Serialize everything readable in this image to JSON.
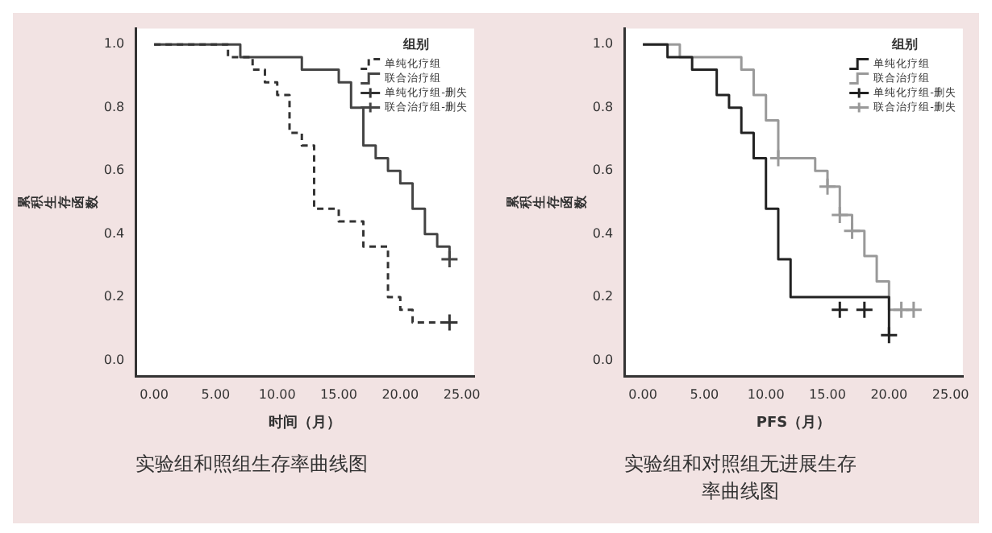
{
  "chart_data": [
    {
      "type": "step",
      "xlabel": "时间（月）",
      "ylabel": "累积生存函数",
      "legend_title": "组别",
      "legend": "top right",
      "grid": false,
      "xlim": [
        -1.5,
        26
      ],
      "ylim": [
        -0.05,
        1.05
      ],
      "xticks": [
        {
          "value": 0,
          "label": "0.00"
        },
        {
          "value": 5,
          "label": "5.00"
        },
        {
          "value": 10,
          "label": "10.00"
        },
        {
          "value": 15,
          "label": "15.00"
        },
        {
          "value": 20,
          "label": "20.00"
        },
        {
          "value": 25,
          "label": "25.00"
        }
      ],
      "yticks": [
        {
          "value": 0,
          "label": "0.0"
        },
        {
          "value": 0.2,
          "label": "0.2"
        },
        {
          "value": 0.4,
          "label": "0.4"
        },
        {
          "value": 0.6,
          "label": "0.6"
        },
        {
          "value": 0.8,
          "label": "0.8"
        },
        {
          "value": 1,
          "label": "1.0"
        }
      ],
      "annotations": [
        "实验组和照组生存率曲线图"
      ],
      "series": [
        {
          "name": "单纯化疗组",
          "type": "step",
          "color": "#333333",
          "line_style": "dashed",
          "x": [
            0,
            6,
            8,
            9,
            10,
            11,
            12,
            13,
            15,
            17,
            19,
            20,
            21,
            24
          ],
          "values": [
            1,
            0.96,
            0.92,
            0.88,
            0.84,
            0.72,
            0.68,
            0.48,
            0.44,
            0.36,
            0.2,
            0.16,
            0.12,
            0.12
          ]
        },
        {
          "name": "联合治疗组",
          "type": "step",
          "color": "#444444",
          "line_style": "solid",
          "x": [
            0,
            7,
            12,
            15,
            16,
            17,
            18,
            19,
            20,
            21,
            22,
            23,
            24
          ],
          "values": [
            1,
            0.96,
            0.92,
            0.88,
            0.8,
            0.68,
            0.64,
            0.6,
            0.56,
            0.48,
            0.4,
            0.36,
            0.32
          ]
        },
        {
          "name": "单纯化疗组-删失",
          "type": "scatter",
          "marker": "cross",
          "color": "#333333",
          "x": [
            24
          ],
          "values": [
            0.12
          ]
        },
        {
          "name": "联合治疗组-删失",
          "type": "scatter",
          "marker": "cross",
          "color": "#444444",
          "x": [
            24
          ],
          "values": [
            0.32
          ]
        }
      ]
    },
    {
      "type": "step",
      "xlabel": "PFS（月）",
      "ylabel": "累积生存函数",
      "legend_title": "组别",
      "legend": "top right",
      "grid": false,
      "xlim": [
        -1.5,
        26
      ],
      "ylim": [
        -0.05,
        1.05
      ],
      "xticks": [
        {
          "value": 0,
          "label": "0.00"
        },
        {
          "value": 5,
          "label": "5.00"
        },
        {
          "value": 10,
          "label": "10.00"
        },
        {
          "value": 15,
          "label": "15.00"
        },
        {
          "value": 20,
          "label": "20.00"
        },
        {
          "value": 25,
          "label": "25.00"
        }
      ],
      "yticks": [
        {
          "value": 0,
          "label": "0.0"
        },
        {
          "value": 0.2,
          "label": "0.2"
        },
        {
          "value": 0.4,
          "label": "0.4"
        },
        {
          "value": 0.6,
          "label": "0.6"
        },
        {
          "value": 0.8,
          "label": "0.8"
        },
        {
          "value": 1,
          "label": "1.0"
        }
      ],
      "annotations": [
        "实验组和对照组无进展生存率曲线图"
      ],
      "series": [
        {
          "name": "单纯化疗组",
          "type": "step",
          "color": "#222222",
          "line_style": "solid",
          "x": [
            0,
            2,
            4,
            6,
            7,
            8,
            9,
            10,
            11,
            12,
            20
          ],
          "values": [
            1,
            0.96,
            0.92,
            0.84,
            0.8,
            0.72,
            0.64,
            0.48,
            0.32,
            0.2,
            0.08
          ]
        },
        {
          "name": "联合治疗组",
          "type": "step",
          "color": "#999999",
          "line_style": "solid",
          "x": [
            0,
            3,
            8,
            9,
            10,
            11,
            14,
            15,
            16,
            17,
            18,
            19,
            20,
            22
          ],
          "values": [
            1,
            0.96,
            0.92,
            0.84,
            0.76,
            0.64,
            0.6,
            0.55,
            0.46,
            0.41,
            0.33,
            0.25,
            0.16,
            0.16
          ]
        },
        {
          "name": "单纯化疗组-删失",
          "type": "scatter",
          "marker": "cross",
          "color": "#222222",
          "x": [
            16,
            18,
            20
          ],
          "values": [
            0.16,
            0.16,
            0.08
          ]
        },
        {
          "name": "联合治疗组-删失",
          "type": "scatter",
          "marker": "cross",
          "color": "#999999",
          "x": [
            11,
            15,
            16,
            17,
            21,
            22
          ],
          "values": [
            0.64,
            0.55,
            0.46,
            0.41,
            0.16,
            0.16
          ]
        }
      ]
    }
  ]
}
